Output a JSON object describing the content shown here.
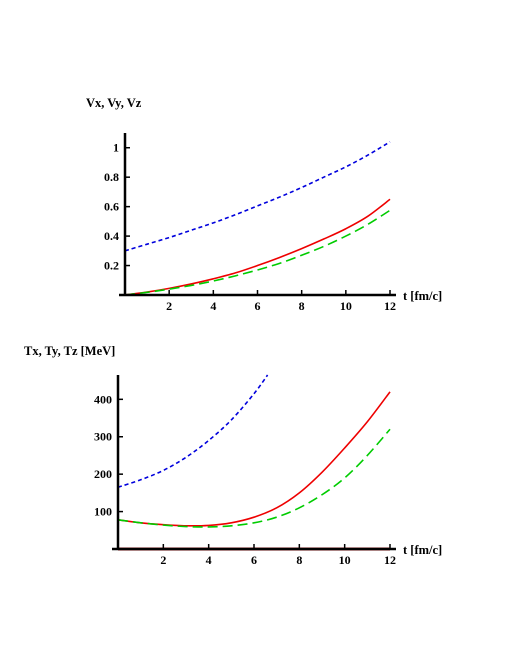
{
  "chart_data": [
    {
      "type": "line",
      "ylabel": "Vx,  Vy, Vz",
      "xlabel": "t [fm/c]",
      "xlim": [
        0,
        12
      ],
      "ylim": [
        0,
        1.1
      ],
      "xticks": [
        2,
        4,
        6,
        8,
        10,
        12
      ],
      "yticks": [
        0.2,
        0.4,
        0.6,
        0.8,
        1
      ],
      "ytick_labels": [
        "0.2",
        "0.4",
        "0.6",
        "0.8",
        "1"
      ],
      "grid": false,
      "series": [
        {
          "color": "#0000dd",
          "style": "short-dash",
          "x": [
            0,
            1,
            2,
            3,
            4,
            5,
            6,
            7,
            8,
            9,
            10,
            11,
            12
          ],
          "y": [
            0.3,
            0.345,
            0.39,
            0.44,
            0.49,
            0.545,
            0.605,
            0.665,
            0.73,
            0.8,
            0.87,
            0.95,
            1.04
          ]
        },
        {
          "color": "#ee0000",
          "style": "solid",
          "x": [
            0,
            1,
            2,
            3,
            4,
            5,
            6,
            7,
            8,
            9,
            10,
            11,
            12
          ],
          "y": [
            0,
            0.02,
            0.045,
            0.075,
            0.11,
            0.15,
            0.2,
            0.255,
            0.315,
            0.38,
            0.45,
            0.535,
            0.65
          ]
        },
        {
          "color": "#00cc00",
          "style": "long-dash",
          "x": [
            0,
            1,
            2,
            3,
            4,
            5,
            6,
            7,
            8,
            9,
            10,
            11,
            12
          ],
          "y": [
            0,
            0.018,
            0.04,
            0.065,
            0.095,
            0.13,
            0.17,
            0.215,
            0.27,
            0.33,
            0.4,
            0.48,
            0.575
          ]
        }
      ]
    },
    {
      "type": "line",
      "ylabel": "Tx,  Ty,  Tz [MeV]",
      "xlabel": "t [fm/c]",
      "xlim": [
        0,
        12
      ],
      "ylim": [
        0,
        465
      ],
      "xticks": [
        2,
        4,
        6,
        8,
        10,
        12
      ],
      "yticks": [
        100,
        200,
        300,
        400
      ],
      "ytick_labels": [
        "100",
        "200",
        "300",
        "400"
      ],
      "grid": false,
      "series": [
        {
          "color": "#0000dd",
          "style": "short-dash",
          "x": [
            0,
            1,
            2,
            3,
            4,
            5,
            6,
            6.6
          ],
          "y": [
            165,
            185,
            210,
            245,
            290,
            345,
            415,
            465
          ]
        },
        {
          "color": "#ee0000",
          "style": "solid",
          "x": [
            0,
            1,
            2,
            3,
            4,
            5,
            6,
            7,
            8,
            9,
            10,
            11,
            12
          ],
          "y": [
            78,
            70,
            65,
            62,
            63,
            70,
            85,
            110,
            150,
            205,
            270,
            340,
            420
          ]
        },
        {
          "color": "#00cc00",
          "style": "long-dash",
          "x": [
            0,
            1,
            2,
            3,
            4,
            5,
            6,
            7,
            8,
            9,
            10,
            11,
            12
          ],
          "y": [
            78,
            70,
            64,
            60,
            59,
            62,
            70,
            85,
            110,
            145,
            190,
            250,
            320
          ]
        },
        {
          "color": "#aa1111",
          "style": "solid-thick",
          "x": [
            0,
            12
          ],
          "y": [
            0,
            0
          ]
        }
      ]
    }
  ]
}
